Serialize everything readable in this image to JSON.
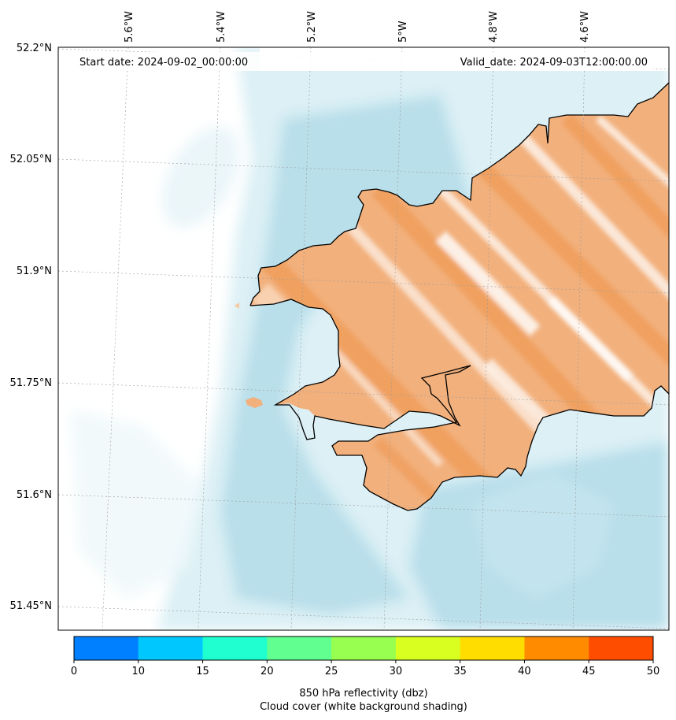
{
  "header": {
    "start_date": "Start date: 2024-09-02_00:00:00",
    "valid_date": "Valid_date: 2024-09-03T12:00:00.00"
  },
  "axes": {
    "lon_labels": [
      "5.6°W",
      "5.4°W",
      "5.2°W",
      "5°W",
      "4.8°W",
      "4.6°W"
    ],
    "lat_labels": [
      "52.2°N",
      "52.05°N",
      "51.9°N",
      "51.75°N",
      "51.6°N",
      "51.45°N"
    ]
  },
  "colorbar": {
    "ticks": [
      "0",
      "10",
      "15",
      "20",
      "25",
      "30",
      "35",
      "40",
      "45",
      "50"
    ],
    "colors": [
      "#0080ff",
      "#00c8ff",
      "#20ffd0",
      "#60ff90",
      "#98ff50",
      "#d8ff20",
      "#ffdd00",
      "#ff8c00",
      "#ff4d00"
    ],
    "label_line1": "850 hPa reflectivity (dbz)",
    "label_line2": "Cloud cover (white background shading)"
  },
  "map": {
    "land_fill_color": "#f1a66a",
    "cloud_color": "#a9d8e6",
    "coastline_color": "#000000"
  }
}
